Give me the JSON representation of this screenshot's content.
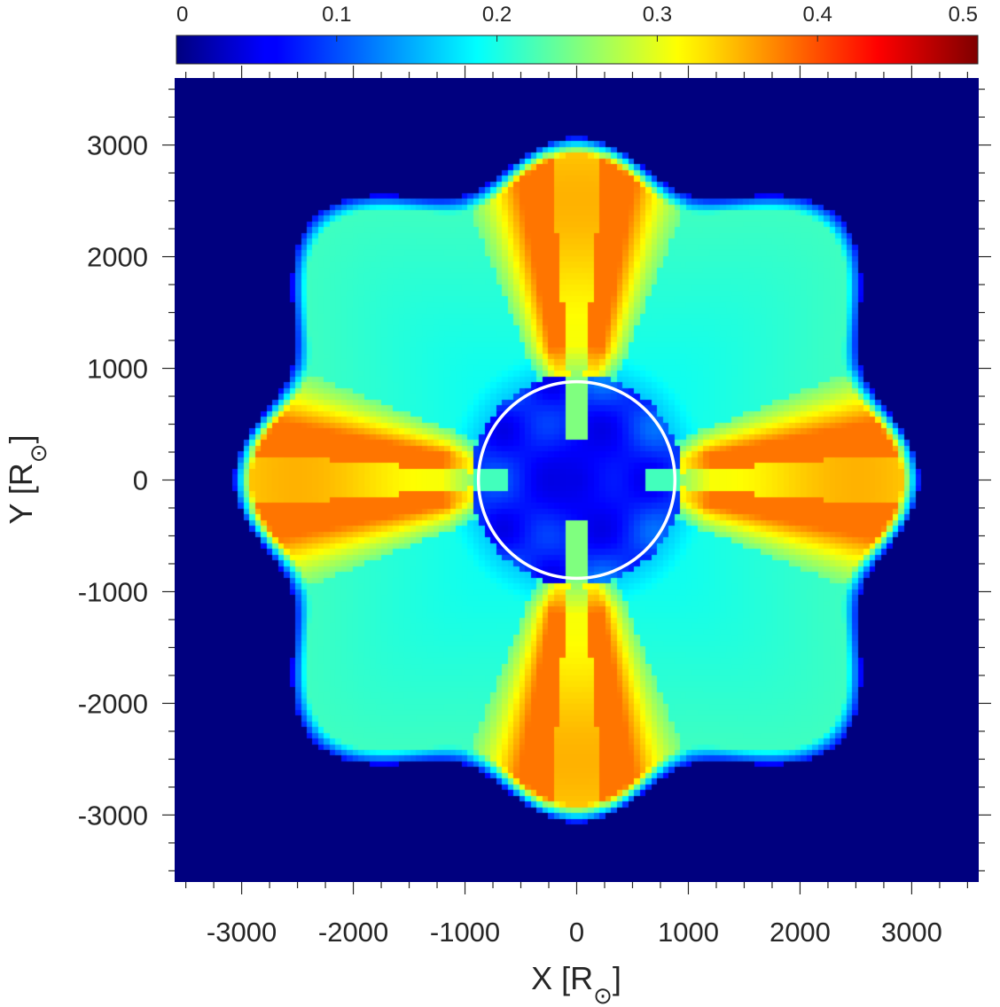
{
  "chart_data": {
    "type": "heatmap",
    "title": "",
    "xlabel": {
      "text": "X [R",
      "subscript": "⊙",
      "close": "]"
    },
    "ylabel": {
      "text": "Y [R",
      "subscript": "⊙",
      "close": "]"
    },
    "xlim": [
      -3600,
      3600
    ],
    "ylim": [
      -3600,
      3600
    ],
    "x_ticks": [
      -3000,
      -2000,
      -1000,
      0,
      1000,
      2000,
      3000
    ],
    "x_tick_labels": [
      "-3000",
      "-2000",
      "-1000",
      "0",
      "1000",
      "2000",
      "3000"
    ],
    "y_ticks": [
      3000,
      2000,
      1000,
      0,
      -1000,
      -2000,
      -3000
    ],
    "y_tick_labels": [
      "3000",
      "2000",
      "1000",
      "0",
      "-1000",
      "-2000",
      "-3000"
    ],
    "colorbar": {
      "colormap": "jet",
      "range": [
        0,
        0.5
      ],
      "ticks": [
        0,
        0.1,
        0.2,
        0.3,
        0.4,
        0.5
      ],
      "tick_labels": [
        "0",
        "0.1",
        "0.2",
        "0.3",
        "0.4",
        "0.5"
      ],
      "location": "top"
    },
    "symmetry": "four-fold (lobes along ±x and ±y axes)",
    "features": {
      "background_value": 0.0,
      "outer_lobe_radius": 3200,
      "lobe_core_value": 0.33,
      "lobe_flank_value": 0.38,
      "interlobe_value": 0.2,
      "inner_cavity_value": 0.05,
      "inner_cavity_radius": 950
    },
    "overlay_circle": {
      "center": [
        0,
        0
      ],
      "radius": 880,
      "color": "#ffffff"
    }
  }
}
